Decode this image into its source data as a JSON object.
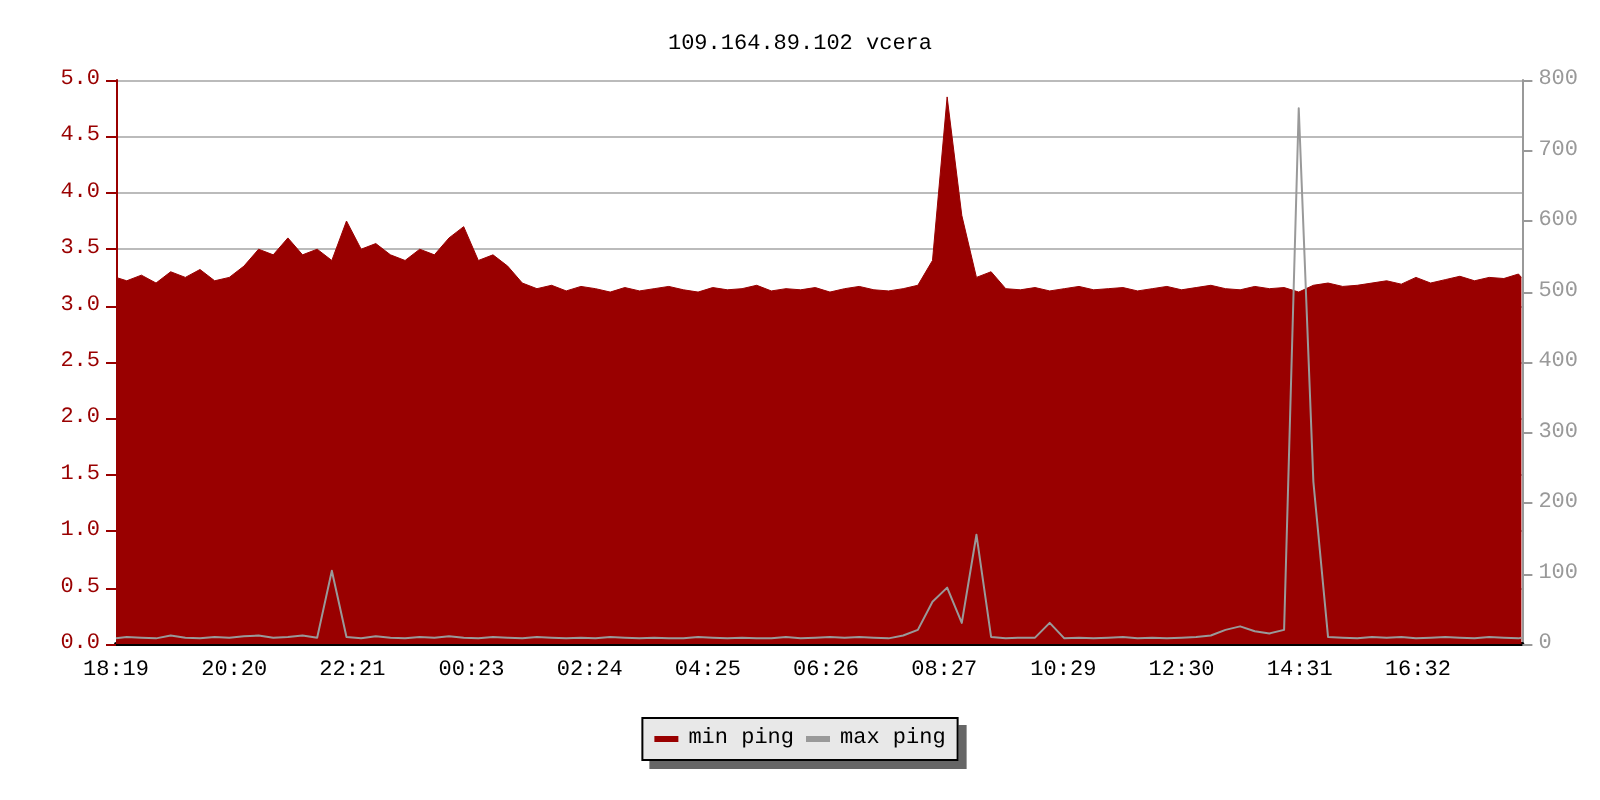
{
  "chart_data": {
    "type": "area",
    "title": "109.164.89.102 vcera",
    "x": [
      "--01-01T18:19",
      "--01-01T18:30",
      "--01-01T18:45",
      "--01-01T19:00",
      "--01-01T19:15",
      "--01-01T19:30",
      "--01-01T19:45",
      "--01-01T20:00",
      "--01-01T20:15",
      "--01-01T20:30",
      "--01-01T20:45",
      "--01-01T21:00",
      "--01-01T21:15",
      "--01-01T21:30",
      "--01-01T21:45",
      "--01-01T22:00",
      "--01-01T22:15",
      "--01-01T22:30",
      "--01-01T22:45",
      "--01-01T23:00",
      "--01-01T23:15",
      "--01-01T23:30",
      "--01-01T23:45",
      "--01-02T00:00",
      "--01-02T00:15",
      "--01-02T00:30",
      "--01-02T00:45",
      "--01-02T01:00",
      "--01-02T01:15",
      "--01-02T01:30",
      "--01-02T01:45",
      "--01-02T02:00",
      "--01-02T02:15",
      "--01-02T02:30",
      "--01-02T02:45",
      "--01-02T03:00",
      "--01-02T03:15",
      "--01-02T03:30",
      "--01-02T03:45",
      "--01-02T04:00",
      "--01-02T04:15",
      "--01-02T04:30",
      "--01-02T04:45",
      "--01-02T05:00",
      "--01-02T05:15",
      "--01-02T05:30",
      "--01-02T05:45",
      "--01-02T06:00",
      "--01-02T06:15",
      "--01-02T06:30",
      "--01-02T06:45",
      "--01-02T07:00",
      "--01-02T07:15",
      "--01-02T07:30",
      "--01-02T07:45",
      "--01-02T08:00",
      "--01-02T08:15",
      "--01-02T08:30",
      "--01-02T08:45",
      "--01-02T09:00",
      "--01-02T09:15",
      "--01-02T09:30",
      "--01-02T09:45",
      "--01-02T10:00",
      "--01-02T10:15",
      "--01-02T10:30",
      "--01-02T10:45",
      "--01-02T11:00",
      "--01-02T11:15",
      "--01-02T11:30",
      "--01-02T11:45",
      "--01-02T12:00",
      "--01-02T12:15",
      "--01-02T12:30",
      "--01-02T12:45",
      "--01-02T13:00",
      "--01-02T13:15",
      "--01-02T13:30",
      "--01-02T13:45",
      "--01-02T14:00",
      "--01-02T14:15",
      "--01-02T14:30",
      "--01-02T14:45",
      "--01-02T15:00",
      "--01-02T15:15",
      "--01-02T15:30",
      "--01-02T15:45",
      "--01-02T16:00",
      "--01-02T16:15",
      "--01-02T16:30",
      "--01-02T16:45",
      "--01-02T17:00",
      "--01-02T17:15",
      "--01-02T17:30",
      "--01-02T17:45",
      "--01-02T18:00",
      "--01-02T18:15",
      "--01-02T18:18"
    ],
    "series": [
      {
        "name": "min ping",
        "color": "#990000",
        "values": [
          3.25,
          3.22,
          3.27,
          3.2,
          3.3,
          3.25,
          3.32,
          3.22,
          3.25,
          3.35,
          3.5,
          3.45,
          3.6,
          3.45,
          3.5,
          3.4,
          3.75,
          3.5,
          3.55,
          3.45,
          3.4,
          3.5,
          3.45,
          3.6,
          3.7,
          3.4,
          3.45,
          3.35,
          3.2,
          3.15,
          3.18,
          3.13,
          3.17,
          3.15,
          3.12,
          3.16,
          3.13,
          3.15,
          3.17,
          3.14,
          3.12,
          3.16,
          3.14,
          3.15,
          3.18,
          3.13,
          3.15,
          3.14,
          3.16,
          3.12,
          3.15,
          3.17,
          3.14,
          3.13,
          3.15,
          3.18,
          3.4,
          4.85,
          3.8,
          3.25,
          3.3,
          3.15,
          3.14,
          3.16,
          3.13,
          3.15,
          3.17,
          3.14,
          3.15,
          3.16,
          3.13,
          3.15,
          3.17,
          3.14,
          3.16,
          3.18,
          3.15,
          3.14,
          3.17,
          3.15,
          3.16,
          3.12,
          3.18,
          3.2,
          3.17,
          3.18,
          3.2,
          3.22,
          3.19,
          3.25,
          3.2,
          3.23,
          3.26,
          3.22,
          3.25,
          3.24,
          3.28,
          3.25
        ]
      },
      {
        "name": "max ping",
        "type": "line",
        "axis": "y2",
        "color": "#999999",
        "values": [
          8,
          10,
          9,
          8,
          12,
          9,
          8,
          10,
          9,
          11,
          12,
          9,
          10,
          12,
          9,
          104,
          10,
          8,
          11,
          9,
          8,
          10,
          9,
          11,
          9,
          8,
          10,
          9,
          8,
          10,
          9,
          8,
          9,
          8,
          10,
          9,
          8,
          9,
          8,
          8,
          10,
          9,
          8,
          9,
          8,
          8,
          10,
          8,
          9,
          10,
          9,
          10,
          9,
          8,
          12,
          20,
          60,
          80,
          30,
          155,
          10,
          8,
          9,
          9,
          30,
          8,
          9,
          8,
          9,
          10,
          8,
          9,
          8,
          9,
          10,
          12,
          20,
          25,
          18,
          15,
          20,
          760,
          230,
          10,
          9,
          8,
          10,
          9,
          10,
          8,
          9,
          10,
          9,
          8,
          10,
          9,
          8,
          9
        ]
      }
    ],
    "xlim": [
      "--01-01T18:19",
      "--01-02T18:19"
    ],
    "xticks": [
      {
        "value": "--01-01T18:19",
        "label": "18:19"
      },
      {
        "value": "--01-01T20:20",
        "label": "20:20"
      },
      {
        "value": "--01-01T22:21",
        "label": "22:21"
      },
      {
        "value": "--01-02T00:23",
        "label": "00:23"
      },
      {
        "value": "--01-02T02:24",
        "label": "02:24"
      },
      {
        "value": "--01-02T04:25",
        "label": "04:25"
      },
      {
        "value": "--01-02T06:26",
        "label": "06:26"
      },
      {
        "value": "--01-02T08:27",
        "label": "08:27"
      },
      {
        "value": "--01-02T10:29",
        "label": "10:29"
      },
      {
        "value": "--01-02T12:30",
        "label": "12:30"
      },
      {
        "value": "--01-02T14:31",
        "label": "14:31"
      },
      {
        "value": "--01-02T16:32",
        "label": "16:32"
      }
    ],
    "ylim": [
      0,
      5
    ],
    "yticks": [
      {
        "value": 0,
        "label": "0.0"
      },
      {
        "value": 0.5,
        "label": "0.5"
      },
      {
        "value": 1,
        "label": "1.0"
      },
      {
        "value": 1.5,
        "label": "1.5"
      },
      {
        "value": 2,
        "label": "2.0"
      },
      {
        "value": 2.5,
        "label": "2.5"
      },
      {
        "value": 3,
        "label": "3.0"
      },
      {
        "value": 3.5,
        "label": "3.5"
      },
      {
        "value": 4,
        "label": "4.0"
      },
      {
        "value": 4.5,
        "label": "4.5"
      },
      {
        "value": 5,
        "label": "5.0"
      }
    ],
    "y2lim": [
      0,
      800
    ],
    "y2ticks": [
      0,
      100,
      200,
      300,
      400,
      500,
      600,
      700,
      800
    ],
    "grid": "y",
    "legend": "bottom"
  }
}
